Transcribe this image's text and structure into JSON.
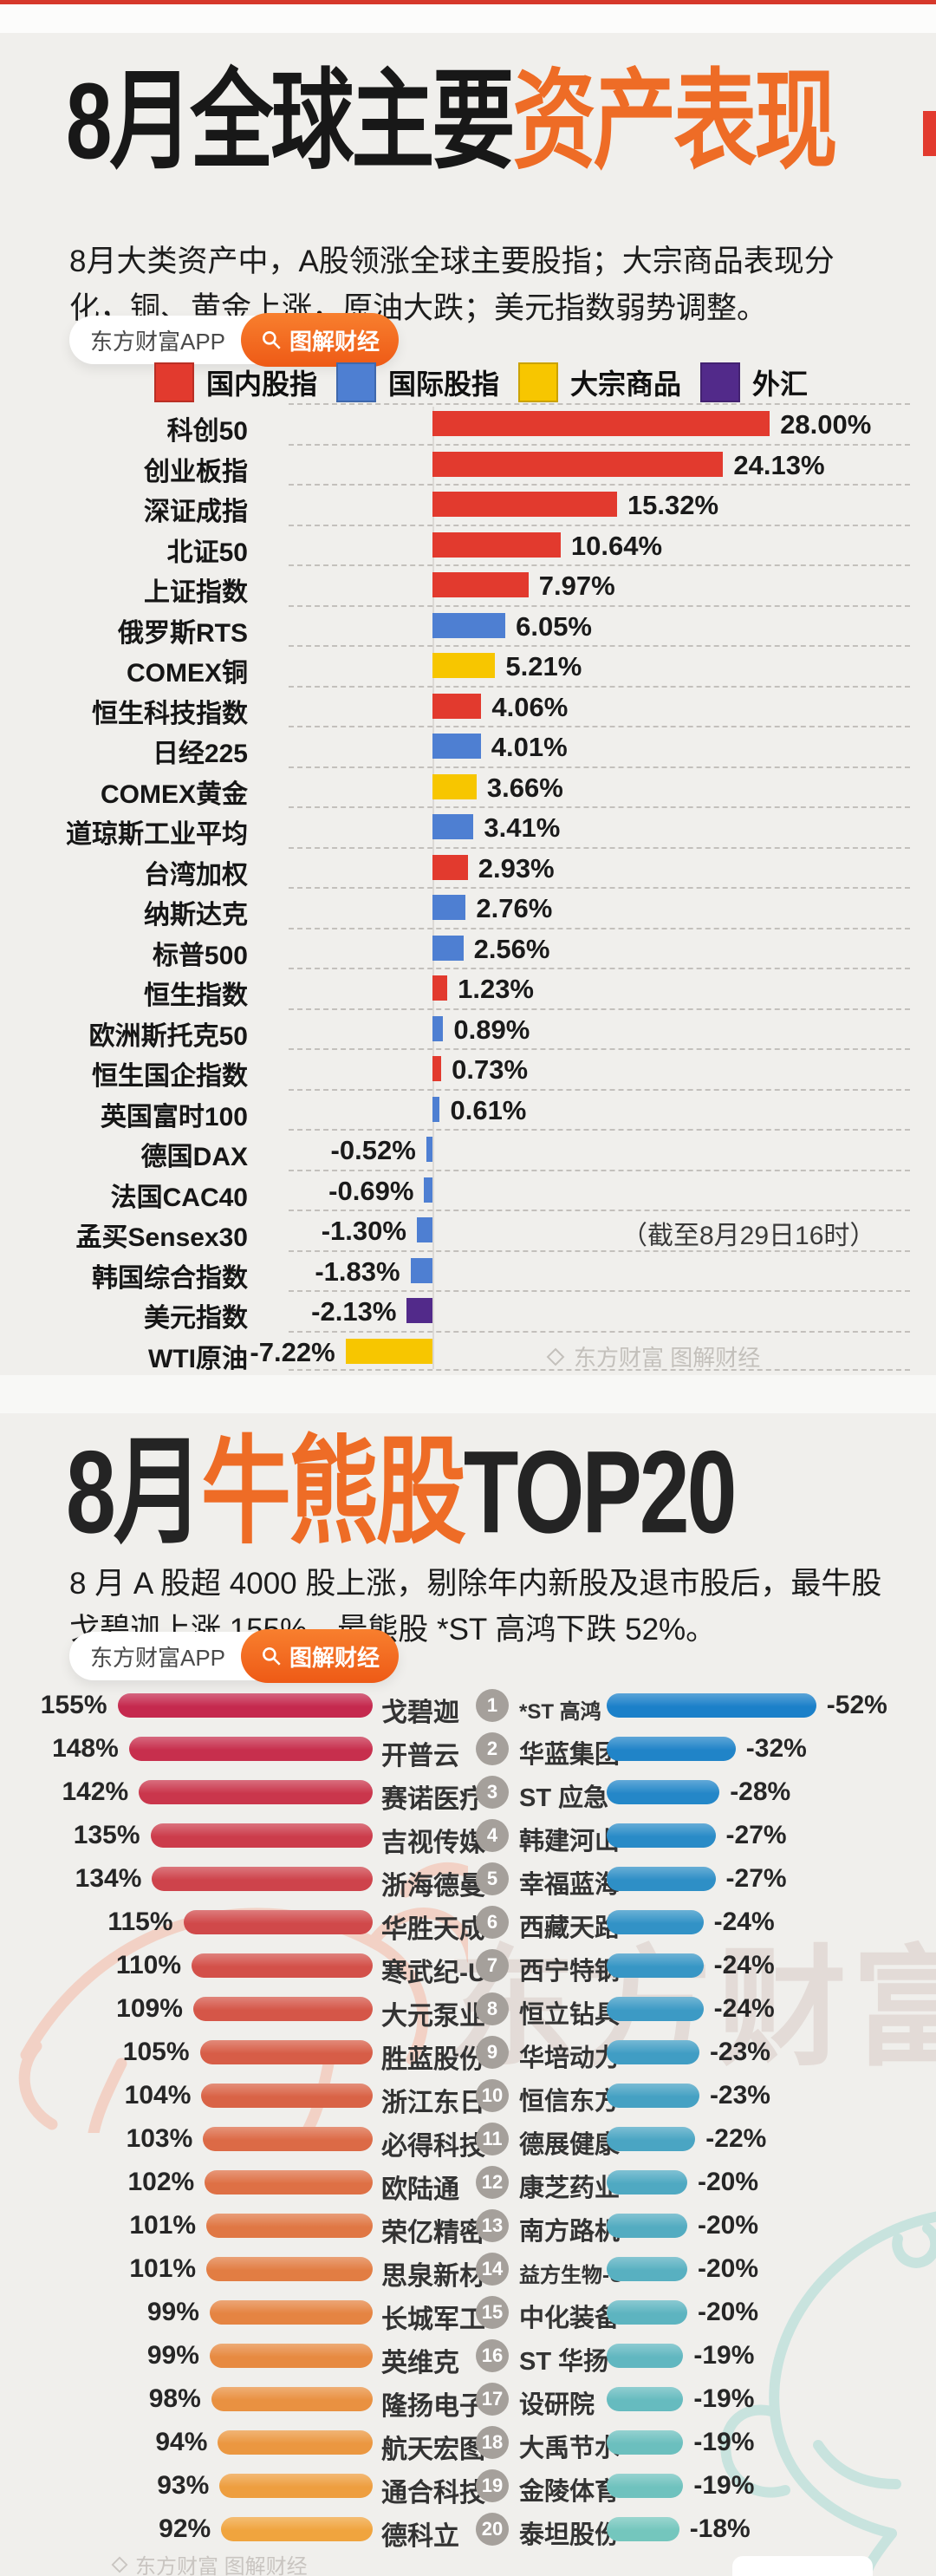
{
  "header1": {
    "title_black": "8月全球主要",
    "title_orange": "资产表现",
    "intro": "8月大类资产中，A股领涨全球主要股指；大宗商品表现分化，铜、黄金上涨，原油大跌；美元指数弱势调整。",
    "badge": {
      "app": "东方财富APP",
      "channel": "图解财经"
    }
  },
  "legend": {
    "items": [
      {
        "label": "国内股指",
        "color": "#e23a2e"
      },
      {
        "label": "国际股指",
        "color": "#4e7fd2"
      },
      {
        "label": "大宗商品",
        "color": "#f7c600"
      },
      {
        "label": "外汇",
        "color": "#522a8a"
      }
    ]
  },
  "header2": {
    "title_prefix": "8月",
    "title_orange": "牛熊股",
    "title_suffix": "TOP20",
    "intro": "8 月 A 股超 4000 股上涨，剔除年内新股及退市股后，最牛股戈碧迦上涨 155%，最熊股 *ST 高鸿下跌 52%。",
    "badge": {
      "app": "东方财富APP",
      "channel": "图解财经"
    }
  },
  "watermarks": {
    "chart_credit": "东方财富 图解财经",
    "center_text": "东方财富",
    "footer": "东方财富 图解财经"
  },
  "chart_data": [
    {
      "type": "bar",
      "title": "8月全球主要资产表现",
      "orientation": "horizontal",
      "unit": "%",
      "xlim": [
        -8,
        29
      ],
      "grid": false,
      "note": "（截至8月29日16时）",
      "note_row_index": 20,
      "categories": [
        "科创50",
        "创业板指",
        "深证成指",
        "北证50",
        "上证指数",
        "俄罗斯RTS",
        "COMEX铜",
        "恒生科技指数",
        "日经225",
        "COMEX黄金",
        "道琼斯工业平均",
        "台湾加权",
        "纳斯达克",
        "标普500",
        "恒生指数",
        "欧洲斯托克50",
        "恒生国企指数",
        "英国富时100",
        "德国DAX",
        "法国CAC40",
        "孟买Sensex30",
        "韩国综合指数",
        "美元指数",
        "WTI原油"
      ],
      "values": [
        28.0,
        24.13,
        15.32,
        10.64,
        7.97,
        6.05,
        5.21,
        4.06,
        4.01,
        3.66,
        3.41,
        2.93,
        2.76,
        2.56,
        1.23,
        0.89,
        0.73,
        0.61,
        -0.52,
        -0.69,
        -1.3,
        -1.83,
        -2.13,
        -7.22
      ],
      "labels": [
        "28.00%",
        "24.13%",
        "15.32%",
        "10.64%",
        "7.97%",
        "6.05%",
        "5.21%",
        "4.06%",
        "4.01%",
        "3.66%",
        "3.41%",
        "2.93%",
        "2.76%",
        "2.56%",
        "1.23%",
        "0.89%",
        "0.73%",
        "0.61%",
        "-0.52%",
        "-0.69%",
        "-1.30%",
        "-1.83%",
        "-2.13%",
        "-7.22%"
      ],
      "groups": [
        "domestic",
        "domestic",
        "domestic",
        "domestic",
        "domestic",
        "international",
        "commodity",
        "domestic",
        "international",
        "commodity",
        "international",
        "domestic",
        "international",
        "international",
        "domestic",
        "international",
        "domestic",
        "international",
        "international",
        "international",
        "international",
        "international",
        "forex",
        "commodity"
      ],
      "group_colors": {
        "domestic": "#e23a2e",
        "international": "#4e7fd2",
        "commodity": "#f7c600",
        "forex": "#522a8a"
      },
      "legend_labels": {
        "domestic": "国内股指",
        "international": "国际股指",
        "commodity": "大宗商品",
        "forex": "外汇"
      }
    },
    {
      "type": "bar",
      "title": "8月牛股TOP20",
      "orientation": "horizontal",
      "unit": "%",
      "categories": [
        "戈碧迦",
        "开普云",
        "赛诺医疗",
        "吉视传媒",
        "浙海德曼",
        "华胜天成",
        "寒武纪-U",
        "大元泵业",
        "胜蓝股份",
        "浙江东日",
        "必得科技",
        "欧陆通",
        "荣亿精密",
        "思泉新材",
        "长城军工",
        "英维克",
        "隆扬电子",
        "航天宏图",
        "通合科技",
        "德科立"
      ],
      "values": [
        155,
        148,
        142,
        135,
        134,
        115,
        110,
        109,
        105,
        104,
        103,
        102,
        101,
        101,
        99,
        99,
        98,
        94,
        93,
        92
      ],
      "labels": [
        "155%",
        "148%",
        "142%",
        "135%",
        "134%",
        "115%",
        "110%",
        "109%",
        "105%",
        "104%",
        "103%",
        "102%",
        "101%",
        "101%",
        "99%",
        "99%",
        "98%",
        "94%",
        "93%",
        "92%"
      ],
      "color_start": "#c5294e",
      "color_end": "#f0a43e"
    },
    {
      "type": "bar",
      "title": "8月熊股TOP20",
      "orientation": "horizontal",
      "unit": "%",
      "categories": [
        "*ST 高鸿",
        "华蓝集团",
        "ST 应急",
        "韩建河山",
        "幸福蓝海",
        "西藏天路",
        "西宁特钢",
        "恒立钻具",
        "华培动力",
        "恒信东方",
        "德展健康",
        "康芝药业",
        "南方路机",
        "益方生物-U",
        "中化装备",
        "ST 华扬",
        "设研院",
        "大禹节水",
        "金陵体育",
        "泰坦股份"
      ],
      "values": [
        -52,
        -32,
        -28,
        -27,
        -27,
        -24,
        -24,
        -24,
        -23,
        -23,
        -22,
        -20,
        -20,
        -20,
        -20,
        -19,
        -19,
        -19,
        -19,
        -18
      ],
      "labels": [
        "-52%",
        "-32%",
        "-28%",
        "-27%",
        "-27%",
        "-24%",
        "-24%",
        "-24%",
        "-23%",
        "-23%",
        "-22%",
        "-20%",
        "-20%",
        "-20%",
        "-20%",
        "-19%",
        "-19%",
        "-19%",
        "-19%",
        "-18%"
      ],
      "color_start": "#1b80c9",
      "color_end": "#74c6bd"
    }
  ]
}
